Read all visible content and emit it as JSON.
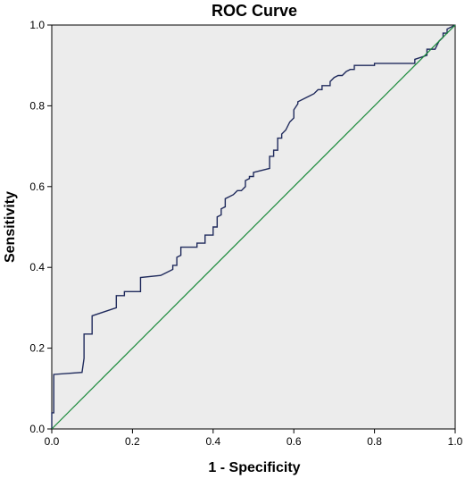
{
  "chart_data": {
    "type": "line",
    "title": "ROC Curve",
    "xlabel": "1 - Specificity",
    "ylabel": "Sensitivity",
    "xlim": [
      0,
      1
    ],
    "ylim": [
      0,
      1
    ],
    "grid": false,
    "x_ticks": [
      "0.0",
      "0.2",
      "0.4",
      "0.6",
      "0.8",
      "1.0"
    ],
    "y_ticks": [
      "0.0",
      "0.2",
      "0.4",
      "0.6",
      "0.8",
      "1.0"
    ],
    "colors": {
      "plot_background": "#ececec",
      "roc_line": "#1f2a5c",
      "reference_line": "#1a8a3a"
    },
    "series": [
      {
        "key": "roc",
        "x": [
          0.0,
          0.0,
          0.005,
          0.005,
          0.075,
          0.08,
          0.08,
          0.1,
          0.1,
          0.16,
          0.16,
          0.18,
          0.18,
          0.22,
          0.22,
          0.27,
          0.28,
          0.3,
          0.3,
          0.31,
          0.31,
          0.32,
          0.32,
          0.36,
          0.36,
          0.38,
          0.38,
          0.4,
          0.4,
          0.41,
          0.41,
          0.42,
          0.42,
          0.43,
          0.43,
          0.45,
          0.46,
          0.47,
          0.48,
          0.48,
          0.49,
          0.49,
          0.5,
          0.5,
          0.54,
          0.54,
          0.55,
          0.55,
          0.56,
          0.56,
          0.57,
          0.57,
          0.58,
          0.59,
          0.6,
          0.6,
          0.61,
          0.61,
          0.63,
          0.64,
          0.65,
          0.66,
          0.67,
          0.67,
          0.69,
          0.69,
          0.7,
          0.71,
          0.72,
          0.73,
          0.74,
          0.75,
          0.75,
          0.76,
          0.8,
          0.8,
          0.9,
          0.9,
          0.93,
          0.93,
          0.95,
          0.96,
          0.97,
          0.97,
          0.98,
          0.98,
          1.0
        ],
        "y": [
          0.0,
          0.04,
          0.04,
          0.135,
          0.14,
          0.175,
          0.235,
          0.235,
          0.28,
          0.3,
          0.33,
          0.33,
          0.34,
          0.34,
          0.375,
          0.38,
          0.385,
          0.395,
          0.405,
          0.405,
          0.425,
          0.43,
          0.45,
          0.45,
          0.46,
          0.46,
          0.48,
          0.48,
          0.5,
          0.5,
          0.525,
          0.53,
          0.545,
          0.55,
          0.57,
          0.58,
          0.59,
          0.59,
          0.6,
          0.615,
          0.62,
          0.625,
          0.625,
          0.635,
          0.645,
          0.675,
          0.675,
          0.69,
          0.69,
          0.72,
          0.72,
          0.73,
          0.74,
          0.76,
          0.77,
          0.79,
          0.805,
          0.81,
          0.82,
          0.825,
          0.83,
          0.84,
          0.84,
          0.85,
          0.85,
          0.86,
          0.87,
          0.875,
          0.875,
          0.885,
          0.89,
          0.89,
          0.9,
          0.9,
          0.9,
          0.905,
          0.905,
          0.915,
          0.925,
          0.94,
          0.94,
          0.96,
          0.97,
          0.98,
          0.98,
          0.99,
          1.0
        ]
      },
      {
        "key": "reference",
        "x": [
          0,
          1
        ],
        "y": [
          0,
          1
        ]
      }
    ]
  }
}
